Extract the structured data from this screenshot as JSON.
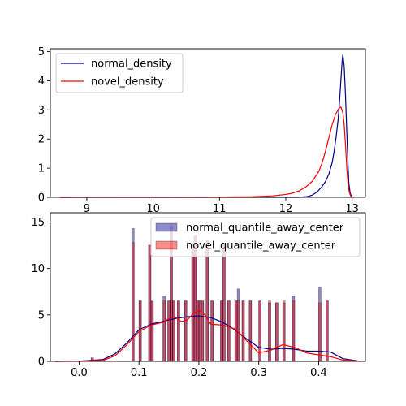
{
  "chart_data": [
    {
      "type": "line",
      "title": "",
      "xlabel": "",
      "ylabel": "",
      "xlim": [
        8.45,
        13.2
      ],
      "ylim": [
        0,
        5.1
      ],
      "x_ticks": [
        9,
        10,
        11,
        12,
        13
      ],
      "y_ticks": [
        0,
        1,
        2,
        3,
        4,
        5
      ],
      "x_tick_labels": [
        "9",
        "10",
        "11",
        "12",
        "13"
      ],
      "y_tick_labels": [
        "0",
        "1",
        "2",
        "3",
        "4",
        "5"
      ],
      "legend_position": "top-left",
      "series": [
        {
          "name": "normal_density",
          "color": "#00008b",
          "x": [
            8.6,
            11.5,
            12.0,
            12.2,
            12.3,
            12.35,
            12.4,
            12.45,
            12.5,
            12.55,
            12.6,
            12.65,
            12.7,
            12.73,
            12.76,
            12.79,
            12.81,
            12.83,
            12.85,
            12.86,
            12.88,
            12.9,
            12.92,
            12.94,
            12.95,
            12.97,
            12.99,
            13.0
          ],
          "y": [
            0,
            0,
            0,
            0,
            0.02,
            0.04,
            0.08,
            0.15,
            0.25,
            0.38,
            0.55,
            0.8,
            1.2,
            1.6,
            2.1,
            2.7,
            3.3,
            4.0,
            4.7,
            4.9,
            4.5,
            3.5,
            2.2,
            1.0,
            0.5,
            0.15,
            0.03,
            0
          ]
        },
        {
          "name": "novel_density",
          "color": "#ff0000",
          "x": [
            8.6,
            11.0,
            11.5,
            11.8,
            12.0,
            12.1,
            12.2,
            12.3,
            12.4,
            12.5,
            12.55,
            12.6,
            12.65,
            12.7,
            12.75,
            12.8,
            12.83,
            12.86,
            12.88,
            12.9,
            12.92,
            12.94,
            12.96,
            12.98,
            13.0
          ],
          "y": [
            0,
            0.01,
            0.02,
            0.05,
            0.1,
            0.14,
            0.22,
            0.35,
            0.55,
            0.9,
            1.2,
            1.6,
            2.05,
            2.5,
            2.85,
            3.05,
            3.1,
            2.9,
            2.5,
            1.8,
            1.0,
            0.4,
            0.15,
            0.04,
            0
          ]
        }
      ]
    },
    {
      "type": "bar",
      "title": "",
      "xlabel": "",
      "ylabel": "",
      "xlim": [
        -0.048,
        0.478
      ],
      "ylim": [
        0,
        16
      ],
      "x_ticks": [
        0.0,
        0.1,
        0.2,
        0.3,
        0.4
      ],
      "y_ticks": [
        0,
        5,
        10,
        15
      ],
      "x_tick_labels": [
        "0.0",
        "0.1",
        "0.2",
        "0.3",
        "0.4"
      ],
      "y_tick_labels": [
        "0",
        "5",
        "10",
        "15"
      ],
      "legend_position": "top-right",
      "bin_width": 0.004,
      "bar_series": [
        {
          "name": "normal_quantile_away_center",
          "color": "#00008b",
          "alpha": 0.45,
          "x": [
            0.02,
            0.088,
            0.1,
            0.116,
            0.12,
            0.14,
            0.148,
            0.152,
            0.156,
            0.164,
            0.176,
            0.188,
            0.192,
            0.196,
            0.2,
            0.204,
            0.212,
            0.22,
            0.236,
            0.24,
            0.248,
            0.26,
            0.264,
            0.272,
            0.284,
            0.3,
            0.316,
            0.328,
            0.34,
            0.356,
            0.4,
            0.412
          ],
          "values": [
            0.3,
            14.3,
            6.5,
            12.5,
            6.5,
            7.0,
            6.5,
            14.5,
            6.5,
            6.5,
            6.5,
            12.5,
            13.5,
            6.5,
            6.5,
            6.5,
            13.0,
            6.5,
            6.5,
            12.5,
            6.5,
            6.5,
            7.8,
            6.5,
            6.5,
            6.5,
            6.3,
            6.3,
            6.3,
            7.0,
            8.0,
            6.5
          ]
        },
        {
          "name": "novel_quantile_away_center",
          "color": "#ff0000",
          "alpha": 0.45,
          "x": [
            0.02,
            0.088,
            0.1,
            0.116,
            0.12,
            0.14,
            0.148,
            0.152,
            0.156,
            0.164,
            0.176,
            0.188,
            0.192,
            0.196,
            0.2,
            0.204,
            0.212,
            0.22,
            0.236,
            0.24,
            0.248,
            0.26,
            0.264,
            0.272,
            0.284,
            0.3,
            0.316,
            0.328,
            0.34,
            0.356,
            0.4,
            0.412
          ],
          "values": [
            0.4,
            12.8,
            6.5,
            12.5,
            6.4,
            6.5,
            6.5,
            14.8,
            6.5,
            6.5,
            6.5,
            12.5,
            13.5,
            6.5,
            6.5,
            6.5,
            13.0,
            6.5,
            6.5,
            12.5,
            6.5,
            6.5,
            6.5,
            6.5,
            6.5,
            6.5,
            6.5,
            6.3,
            6.5,
            6.5,
            6.3,
            6.5
          ]
        }
      ],
      "series": [
        {
          "name": "normal_quantile_away_center",
          "color": "#00008b",
          "x": [
            -0.04,
            0.0,
            0.04,
            0.06,
            0.08,
            0.1,
            0.12,
            0.14,
            0.16,
            0.18,
            0.2,
            0.22,
            0.24,
            0.26,
            0.28,
            0.3,
            0.32,
            0.34,
            0.36,
            0.38,
            0.4,
            0.42,
            0.44,
            0.47
          ],
          "y": [
            0,
            0.02,
            0.2,
            0.8,
            2.0,
            3.4,
            4.0,
            4.3,
            4.6,
            4.8,
            4.9,
            4.7,
            4.2,
            3.4,
            2.4,
            1.5,
            1.3,
            1.4,
            1.3,
            1.1,
            1.1,
            1.0,
            0.3,
            0
          ]
        },
        {
          "name": "novel_quantile_away_center",
          "color": "#ff0000",
          "x": [
            -0.04,
            0.0,
            0.04,
            0.06,
            0.08,
            0.1,
            0.12,
            0.14,
            0.15,
            0.16,
            0.17,
            0.18,
            0.19,
            0.2,
            0.21,
            0.22,
            0.24,
            0.26,
            0.28,
            0.3,
            0.32,
            0.34,
            0.36,
            0.38,
            0.4,
            0.42,
            0.44,
            0.47
          ],
          "y": [
            0,
            0.02,
            0.1,
            0.6,
            1.8,
            3.2,
            3.9,
            4.2,
            4.6,
            4.8,
            4.3,
            4.4,
            5.1,
            5.5,
            5.0,
            4.0,
            3.9,
            3.5,
            2.2,
            0.9,
            1.2,
            1.8,
            1.5,
            0.9,
            0.7,
            0.5,
            0.15,
            0
          ]
        }
      ]
    }
  ]
}
